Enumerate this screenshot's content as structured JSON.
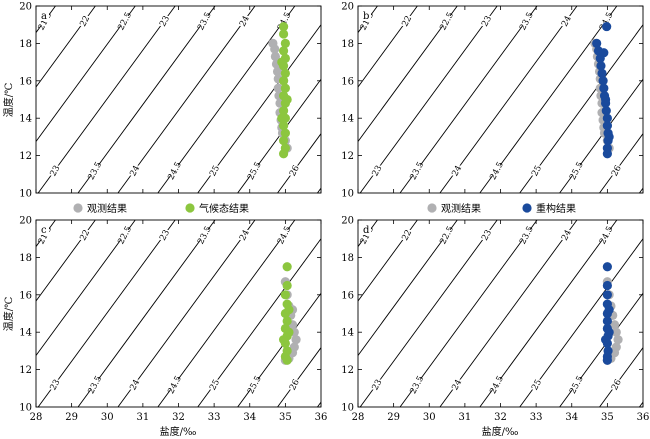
{
  "figure": {
    "xlabel": "盐度/‰",
    "ylabel": "温度/℃"
  },
  "colors": {
    "observed": "#b0b0b2",
    "climatology": "#8cc63f",
    "reconstructed": "#1a4a9c",
    "contour": "#000000"
  },
  "legends": {
    "top": [
      {
        "label": "观测结果",
        "color": "#b0b0b2"
      },
      {
        "label": "气候态结果",
        "color": "#8cc63f"
      },
      {
        "label": "观测结果",
        "color": "#b0b0b2"
      },
      {
        "label": "重构结果",
        "color": "#1a4a9c"
      }
    ]
  },
  "chart_data": [
    {
      "type": "scatter",
      "panel": "a",
      "xlim": [
        28,
        36
      ],
      "ylim": [
        10,
        20
      ],
      "xticks": [
        28,
        29,
        30,
        31,
        32,
        33,
        34,
        35,
        36
      ],
      "yticks": [
        10,
        12,
        14,
        16,
        18,
        20
      ],
      "contour_levels": [
        "20",
        "20.5",
        "21",
        "21.5",
        "22",
        "22.5",
        "23",
        "23.5",
        "24",
        "24.5",
        "25",
        "25.5",
        "26",
        "26.5",
        "27"
      ],
      "series": [
        {
          "name": "观测结果",
          "color_key": "observed",
          "points": [
            [
              34.65,
              18.0
            ],
            [
              34.7,
              17.7
            ],
            [
              34.72,
              17.3
            ],
            [
              34.75,
              16.9
            ],
            [
              34.78,
              16.5
            ],
            [
              34.8,
              16.1
            ],
            [
              34.8,
              15.6
            ],
            [
              34.82,
              15.2
            ],
            [
              34.85,
              14.8
            ],
            [
              34.85,
              14.3
            ],
            [
              34.88,
              13.9
            ],
            [
              34.9,
              13.5
            ],
            [
              34.92,
              13.2
            ],
            [
              35.0,
              12.8
            ],
            [
              35.05,
              12.4
            ],
            [
              34.95,
              16.0
            ],
            [
              34.9,
              15.0
            ]
          ]
        },
        {
          "name": "气候态结果",
          "color_key": "climatology",
          "points": [
            [
              34.95,
              18.9
            ],
            [
              34.95,
              18.5
            ],
            [
              35.0,
              18.0
            ],
            [
              34.95,
              17.6
            ],
            [
              35.0,
              17.2
            ],
            [
              34.95,
              16.8
            ],
            [
              35.0,
              16.4
            ],
            [
              34.95,
              16.0
            ],
            [
              35.0,
              15.6
            ],
            [
              34.95,
              15.2
            ],
            [
              35.0,
              14.8
            ],
            [
              34.95,
              14.4
            ],
            [
              35.0,
              14.0
            ],
            [
              34.95,
              13.6
            ],
            [
              35.0,
              13.2
            ],
            [
              34.95,
              12.8
            ],
            [
              35.0,
              12.4
            ],
            [
              34.95,
              12.1
            ],
            [
              34.9,
              17.0
            ],
            [
              35.05,
              15.0
            ],
            [
              34.9,
              14.0
            ]
          ]
        }
      ]
    },
    {
      "type": "scatter",
      "panel": "b",
      "xlim": [
        28,
        36
      ],
      "ylim": [
        10,
        20
      ],
      "xticks": [
        28,
        29,
        30,
        31,
        32,
        33,
        34,
        35,
        36
      ],
      "yticks": [
        10,
        12,
        14,
        16,
        18,
        20
      ],
      "contour_levels": [
        "20",
        "20.5",
        "21",
        "21.5",
        "22",
        "22.5",
        "23",
        "23.5",
        "24",
        "24.5",
        "25",
        "25.5",
        "26",
        "26.5",
        "27"
      ],
      "series": [
        {
          "name": "观测结果",
          "color_key": "observed",
          "points": [
            [
              34.65,
              18.0
            ],
            [
              34.7,
              17.7
            ],
            [
              34.72,
              17.3
            ],
            [
              34.75,
              16.9
            ],
            [
              34.78,
              16.5
            ],
            [
              34.8,
              16.1
            ],
            [
              34.8,
              15.6
            ],
            [
              34.82,
              15.2
            ],
            [
              34.85,
              14.8
            ],
            [
              34.85,
              14.3
            ],
            [
              34.88,
              13.9
            ],
            [
              34.9,
              13.5
            ],
            [
              34.92,
              13.2
            ],
            [
              35.0,
              12.8
            ],
            [
              35.05,
              12.4
            ]
          ]
        },
        {
          "name": "重构结果",
          "color_key": "reconstructed",
          "points": [
            [
              34.98,
              18.9
            ],
            [
              34.7,
              18.0
            ],
            [
              34.75,
              17.6
            ],
            [
              34.8,
              17.2
            ],
            [
              34.82,
              16.8
            ],
            [
              34.85,
              16.4
            ],
            [
              34.88,
              16.0
            ],
            [
              34.9,
              15.6
            ],
            [
              34.92,
              15.2
            ],
            [
              34.95,
              14.8
            ],
            [
              34.97,
              14.4
            ],
            [
              35.0,
              14.0
            ],
            [
              35.0,
              13.6
            ],
            [
              35.02,
              13.2
            ],
            [
              35.02,
              12.8
            ],
            [
              35.0,
              12.4
            ],
            [
              35.0,
              12.1
            ],
            [
              34.9,
              17.5
            ],
            [
              34.95,
              15.0
            ],
            [
              35.05,
              13.0
            ]
          ]
        }
      ]
    },
    {
      "type": "scatter",
      "panel": "c",
      "xlim": [
        28,
        36
      ],
      "ylim": [
        10,
        20
      ],
      "xticks": [
        28,
        29,
        30,
        31,
        32,
        33,
        34,
        35,
        36
      ],
      "yticks": [
        10,
        12,
        14,
        16,
        18,
        20
      ],
      "contour_levels": [
        "20",
        "20.5",
        "21",
        "21.5",
        "22",
        "22.5",
        "23",
        "23.5",
        "24",
        "24.5",
        "25",
        "25.5",
        "26",
        "26.5",
        "27"
      ],
      "series": [
        {
          "name": "观测结果",
          "color_key": "observed",
          "points": [
            [
              35.0,
              16.7
            ],
            [
              35.05,
              16.0
            ],
            [
              35.1,
              15.4
            ],
            [
              35.15,
              14.9
            ],
            [
              35.2,
              14.4
            ],
            [
              35.25,
              14.0
            ],
            [
              35.3,
              13.6
            ],
            [
              35.25,
              13.2
            ],
            [
              35.2,
              12.9
            ],
            [
              35.1,
              12.6
            ],
            [
              35.0,
              12.5
            ],
            [
              35.2,
              15.2
            ]
          ]
        },
        {
          "name": "气候态结果",
          "color_key": "climatology",
          "points": [
            [
              35.05,
              17.5
            ],
            [
              35.05,
              16.5
            ],
            [
              35.0,
              16.0
            ],
            [
              35.05,
              15.5
            ],
            [
              35.0,
              15.0
            ],
            [
              35.05,
              14.6
            ],
            [
              35.0,
              14.2
            ],
            [
              35.05,
              13.8
            ],
            [
              35.0,
              13.4
            ],
            [
              35.05,
              13.0
            ],
            [
              35.0,
              12.7
            ],
            [
              35.05,
              12.5
            ],
            [
              35.1,
              14.0
            ],
            [
              34.95,
              13.6
            ],
            [
              35.1,
              15.2
            ]
          ]
        }
      ]
    },
    {
      "type": "scatter",
      "panel": "d",
      "xlim": [
        28,
        36
      ],
      "ylim": [
        10,
        20
      ],
      "xticks": [
        28,
        29,
        30,
        31,
        32,
        33,
        34,
        35,
        36
      ],
      "yticks": [
        10,
        12,
        14,
        16,
        18,
        20
      ],
      "contour_levels": [
        "20",
        "20.5",
        "21",
        "21.5",
        "22",
        "22.5",
        "23",
        "23.5",
        "24",
        "24.5",
        "25",
        "25.5",
        "26",
        "26.5",
        "27"
      ],
      "series": [
        {
          "name": "观测结果",
          "color_key": "observed",
          "points": [
            [
              35.0,
              16.7
            ],
            [
              35.05,
              16.0
            ],
            [
              35.1,
              15.4
            ],
            [
              35.15,
              14.9
            ],
            [
              35.2,
              14.4
            ],
            [
              35.25,
              14.0
            ],
            [
              35.3,
              13.6
            ],
            [
              35.25,
              13.2
            ],
            [
              35.2,
              12.9
            ],
            [
              35.1,
              12.6
            ],
            [
              35.0,
              12.5
            ]
          ]
        },
        {
          "name": "重构结果",
          "color_key": "reconstructed",
          "points": [
            [
              35.0,
              17.5
            ],
            [
              35.0,
              16.5
            ],
            [
              35.0,
              16.0
            ],
            [
              35.0,
              15.5
            ],
            [
              35.0,
              15.0
            ],
            [
              35.0,
              14.6
            ],
            [
              35.0,
              14.2
            ],
            [
              35.02,
              13.8
            ],
            [
              35.0,
              13.4
            ],
            [
              35.02,
              13.0
            ],
            [
              35.0,
              12.7
            ],
            [
              35.0,
              12.5
            ],
            [
              35.05,
              14.0
            ],
            [
              34.95,
              13.6
            ],
            [
              35.05,
              15.2
            ]
          ]
        }
      ]
    }
  ]
}
